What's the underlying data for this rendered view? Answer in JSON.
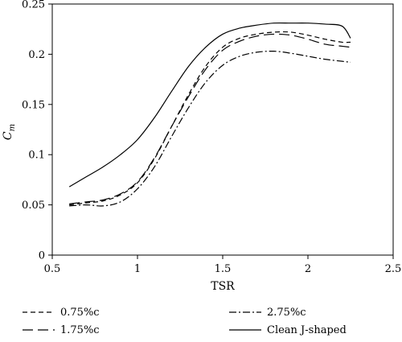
{
  "chart_data": {
    "type": "line",
    "xlabel": "TSR",
    "ylabel_main": "C",
    "ylabel_sub": "m",
    "xlim": [
      0.5,
      2.5
    ],
    "ylim": [
      0,
      0.25
    ],
    "x_ticks": [
      0.5,
      1,
      1.5,
      2,
      2.5
    ],
    "x_tick_labels": [
      "0.5",
      "1",
      "1.5",
      "2",
      "2.5"
    ],
    "y_ticks": [
      0,
      0.05,
      0.1,
      0.15,
      0.2,
      0.25
    ],
    "y_tick_labels": [
      "0",
      "0.05",
      "0.1",
      "0.15",
      "0.2",
      "0.25"
    ],
    "grid": false,
    "legend_position": "bottom",
    "series": [
      {
        "name": "0.75%c",
        "style": "dashed",
        "color": "#000000",
        "points": [
          [
            0.6,
            0.05
          ],
          [
            0.7,
            0.052
          ],
          [
            0.8,
            0.054
          ],
          [
            0.9,
            0.06
          ],
          [
            1.0,
            0.072
          ],
          [
            1.1,
            0.096
          ],
          [
            1.2,
            0.128
          ],
          [
            1.3,
            0.16
          ],
          [
            1.4,
            0.188
          ],
          [
            1.5,
            0.207
          ],
          [
            1.6,
            0.216
          ],
          [
            1.7,
            0.22
          ],
          [
            1.8,
            0.222
          ],
          [
            1.9,
            0.222
          ],
          [
            2.0,
            0.219
          ],
          [
            2.1,
            0.215
          ],
          [
            2.2,
            0.212
          ],
          [
            2.25,
            0.212
          ]
        ]
      },
      {
        "name": "1.75%c",
        "style": "longdash",
        "color": "#000000",
        "points": [
          [
            0.6,
            0.051
          ],
          [
            0.7,
            0.053
          ],
          [
            0.8,
            0.055
          ],
          [
            0.9,
            0.061
          ],
          [
            1.0,
            0.073
          ],
          [
            1.1,
            0.097
          ],
          [
            1.2,
            0.128
          ],
          [
            1.3,
            0.158
          ],
          [
            1.4,
            0.185
          ],
          [
            1.5,
            0.204
          ],
          [
            1.6,
            0.213
          ],
          [
            1.7,
            0.218
          ],
          [
            1.8,
            0.22
          ],
          [
            1.9,
            0.219
          ],
          [
            2.0,
            0.215
          ],
          [
            2.1,
            0.21
          ],
          [
            2.2,
            0.208
          ],
          [
            2.25,
            0.207
          ]
        ]
      },
      {
        "name": "2.75%c",
        "style": "dashdot",
        "color": "#000000",
        "points": [
          [
            0.6,
            0.049
          ],
          [
            0.7,
            0.05
          ],
          [
            0.8,
            0.049
          ],
          [
            0.9,
            0.053
          ],
          [
            1.0,
            0.066
          ],
          [
            1.1,
            0.088
          ],
          [
            1.2,
            0.118
          ],
          [
            1.3,
            0.147
          ],
          [
            1.4,
            0.172
          ],
          [
            1.5,
            0.189
          ],
          [
            1.6,
            0.198
          ],
          [
            1.7,
            0.202
          ],
          [
            1.8,
            0.203
          ],
          [
            1.9,
            0.201
          ],
          [
            2.0,
            0.198
          ],
          [
            2.1,
            0.195
          ],
          [
            2.2,
            0.193
          ],
          [
            2.25,
            0.192
          ]
        ]
      },
      {
        "name": "Clean J-shaped",
        "style": "solid",
        "color": "#000000",
        "points": [
          [
            0.6,
            0.068
          ],
          [
            0.7,
            0.078
          ],
          [
            0.8,
            0.088
          ],
          [
            0.9,
            0.1
          ],
          [
            1.0,
            0.115
          ],
          [
            1.1,
            0.137
          ],
          [
            1.2,
            0.163
          ],
          [
            1.3,
            0.188
          ],
          [
            1.4,
            0.207
          ],
          [
            1.5,
            0.22
          ],
          [
            1.6,
            0.226
          ],
          [
            1.7,
            0.229
          ],
          [
            1.8,
            0.231
          ],
          [
            1.9,
            0.231
          ],
          [
            2.0,
            0.231
          ],
          [
            2.1,
            0.23
          ],
          [
            2.2,
            0.228
          ],
          [
            2.25,
            0.216
          ]
        ]
      }
    ]
  }
}
